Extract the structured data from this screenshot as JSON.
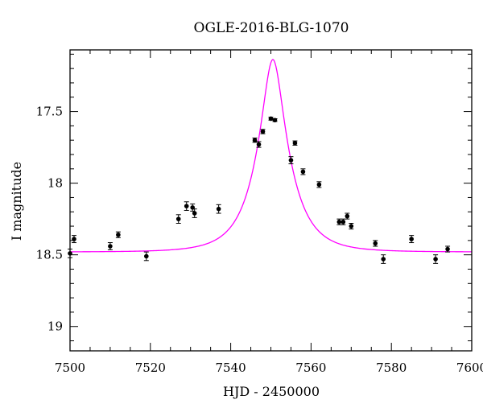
{
  "chart_data": {
    "type": "scatter",
    "title": "OGLE-2016-BLG-1070",
    "xlabel": "HJD - 2450000",
    "ylabel": "I magnitude",
    "xlim": [
      7500,
      7600
    ],
    "ylim": [
      19.17,
      17.07
    ],
    "y_inverted": true,
    "grid": false,
    "x_ticks": [
      "7500",
      "7520",
      "7540",
      "7560",
      "7580",
      "7600"
    ],
    "y_ticks": [
      "17.5",
      "18",
      "18.5",
      "19"
    ],
    "colors": {
      "data": "#000000",
      "model": "#ff00ff"
    },
    "series": [
      {
        "kind": "points_with_errorbars",
        "points": [
          {
            "x": 7500.0,
            "y": 18.49,
            "err": 0.03
          },
          {
            "x": 7501.0,
            "y": 18.39,
            "err": 0.025
          },
          {
            "x": 7510.0,
            "y": 18.44,
            "err": 0.025
          },
          {
            "x": 7512.0,
            "y": 18.36,
            "err": 0.02
          },
          {
            "x": 7519.0,
            "y": 18.51,
            "err": 0.03
          },
          {
            "x": 7527.0,
            "y": 18.25,
            "err": 0.03
          },
          {
            "x": 7529.0,
            "y": 18.16,
            "err": 0.03
          },
          {
            "x": 7530.5,
            "y": 18.17,
            "err": 0.025
          },
          {
            "x": 7531.0,
            "y": 18.21,
            "err": 0.03
          },
          {
            "x": 7537.0,
            "y": 18.18,
            "err": 0.03
          },
          {
            "x": 7546.0,
            "y": 17.7,
            "err": 0.015
          },
          {
            "x": 7547.0,
            "y": 17.73,
            "err": 0.02
          },
          {
            "x": 7548.0,
            "y": 17.64,
            "err": 0.015
          },
          {
            "x": 7550.0,
            "y": 17.55,
            "err": 0.01
          },
          {
            "x": 7551.0,
            "y": 17.56,
            "err": 0.01
          },
          {
            "x": 7555.0,
            "y": 17.84,
            "err": 0.025
          },
          {
            "x": 7556.0,
            "y": 17.72,
            "err": 0.015
          },
          {
            "x": 7558.0,
            "y": 17.92,
            "err": 0.02
          },
          {
            "x": 7562.0,
            "y": 18.01,
            "err": 0.02
          },
          {
            "x": 7567.0,
            "y": 18.27,
            "err": 0.02
          },
          {
            "x": 7568.0,
            "y": 18.27,
            "err": 0.02
          },
          {
            "x": 7569.0,
            "y": 18.23,
            "err": 0.02
          },
          {
            "x": 7570.0,
            "y": 18.3,
            "err": 0.02
          },
          {
            "x": 7576.0,
            "y": 18.42,
            "err": 0.02
          },
          {
            "x": 7578.0,
            "y": 18.53,
            "err": 0.03
          },
          {
            "x": 7585.0,
            "y": 18.39,
            "err": 0.025
          },
          {
            "x": 7591.0,
            "y": 18.53,
            "err": 0.03
          },
          {
            "x": 7594.0,
            "y": 18.46,
            "err": 0.02
          }
        ]
      },
      {
        "kind": "model_curve",
        "t0": 7550.5,
        "tE": 8.0,
        "u0": 0.3,
        "baseline": 18.48
      }
    ]
  }
}
